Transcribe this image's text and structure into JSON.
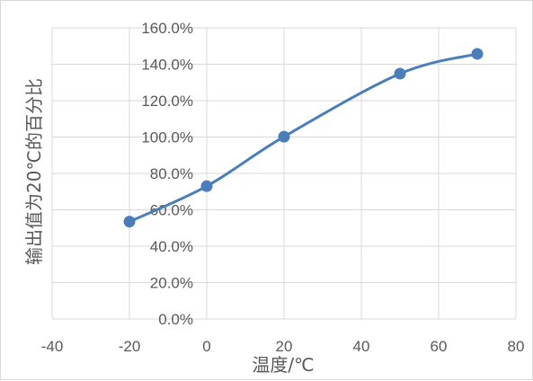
{
  "chart_data": {
    "type": "scatter",
    "title": "",
    "xlabel": "温度/℃",
    "ylabel": "输出值为20℃的百分比",
    "xlim": [
      -40,
      80
    ],
    "ylim": [
      0,
      160
    ],
    "x_ticks": [
      "-40",
      "-20",
      "0",
      "20",
      "40",
      "60",
      "80"
    ],
    "y_ticks": [
      "0.0%",
      "20.0%",
      "40.0%",
      "60.0%",
      "80.0%",
      "100.0%",
      "120.0%",
      "140.0%",
      "160.0%"
    ],
    "grid": true,
    "smooth_line": true,
    "series": [
      {
        "x": [
          -20,
          0,
          20,
          50,
          70
        ],
        "y": [
          53.5,
          73,
          100.2,
          134.8,
          145.7
        ]
      }
    ],
    "colors": {
      "series": "#4a7ebb",
      "grid": "#d9d9d9",
      "text": "#595959"
    }
  }
}
